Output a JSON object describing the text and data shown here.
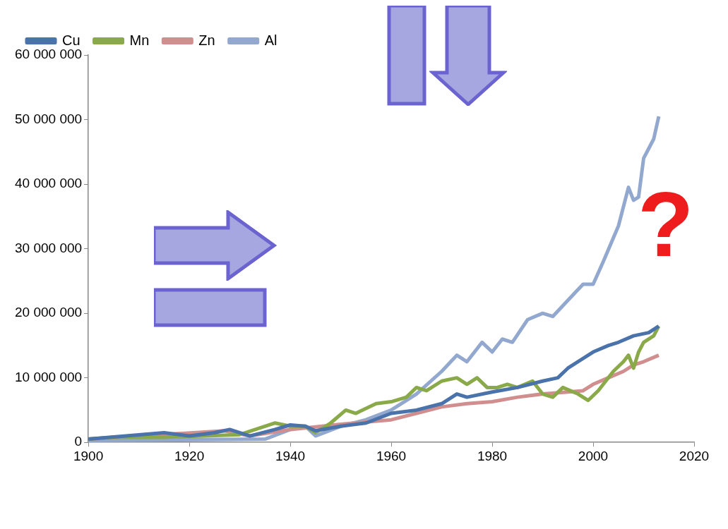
{
  "chart_data": {
    "type": "line",
    "legend": "top left",
    "marker": "none",
    "line_style": "solid",
    "grid": false,
    "xlim": [
      1900,
      2020
    ],
    "xticks": [
      1900,
      1920,
      1940,
      1960,
      1980,
      2000,
      2020
    ],
    "ylim": [
      0,
      60000000
    ],
    "yticks": [
      {
        "value": 0,
        "label": "0"
      },
      {
        "value": 10000000,
        "label": "10 000 000"
      },
      {
        "value": 20000000,
        "label": "20 000 000"
      },
      {
        "value": 30000000,
        "label": "30 000 000"
      },
      {
        "value": 40000000,
        "label": "40 000 000"
      },
      {
        "value": 50000000,
        "label": "50 000 000"
      },
      {
        "value": 60000000,
        "label": "60 000 000"
      }
    ],
    "annotations": [
      "?"
    ],
    "series": [
      {
        "name": "Cu",
        "color": "#4a72ab",
        "x": [
          1900,
          1915,
          1920,
          1925,
          1928,
          1932,
          1937,
          1940,
          1943,
          1945,
          1950,
          1955,
          1960,
          1965,
          1970,
          1973,
          1975,
          1980,
          1985,
          1990,
          1993,
          1995,
          2000,
          2003,
          2005,
          2008,
          2011,
          2013
        ],
        "values": [
          500000,
          1500000,
          1000000,
          1500000,
          2000000,
          1000000,
          2000000,
          2700000,
          2500000,
          1800000,
          2500000,
          3000000,
          4500000,
          5000000,
          6000000,
          7500000,
          7000000,
          7800000,
          8500000,
          9500000,
          10000000,
          11500000,
          14000000,
          15000000,
          15500000,
          16500000,
          17000000,
          18000000
        ]
      },
      {
        "name": "Mn",
        "color": "#8aaa4a",
        "x": [
          1900,
          1905,
          1915,
          1930,
          1937,
          1940,
          1943,
          1945,
          1948,
          1951,
          1953,
          1957,
          1960,
          1963,
          1965,
          1967,
          1970,
          1973,
          1975,
          1977,
          1979,
          1981,
          1983,
          1985,
          1988,
          1990,
          1992,
          1994,
          1997,
          1999,
          2001,
          2004,
          2006,
          2007,
          2008,
          2009,
          2010,
          2012,
          2013
        ],
        "values": [
          500000,
          800000,
          800000,
          1200000,
          3000000,
          2500000,
          2500000,
          1500000,
          3000000,
          5000000,
          4500000,
          6000000,
          6300000,
          7000000,
          8500000,
          8000000,
          9500000,
          10000000,
          9000000,
          10000000,
          8500000,
          8500000,
          9000000,
          8500000,
          9500000,
          7500000,
          7000000,
          8500000,
          7500000,
          6500000,
          8000000,
          11000000,
          12500000,
          13500000,
          11500000,
          14000000,
          15500000,
          16500000,
          18000000
        ]
      },
      {
        "name": "Zn",
        "color": "#d08e8e",
        "x": [
          1900,
          1927,
          1932,
          1940,
          1950,
          1960,
          1965,
          1970,
          1975,
          1980,
          1985,
          1990,
          1995,
          1998,
          2000,
          2003,
          2006,
          2008,
          2010,
          2013
        ],
        "values": [
          500000,
          1800000,
          1000000,
          2000000,
          2800000,
          3500000,
          4500000,
          5500000,
          6000000,
          6300000,
          7000000,
          7500000,
          7800000,
          8000000,
          9000000,
          10000000,
          11000000,
          12000000,
          12500000,
          13500000
        ]
      },
      {
        "name": "Al",
        "color": "#93a8cf",
        "x": [
          1900,
          1935,
          1940,
          1943,
          1945,
          1950,
          1955,
          1960,
          1965,
          1970,
          1973,
          1975,
          1978,
          1980,
          1982,
          1984,
          1987,
          1990,
          1992,
          1995,
          1998,
          2000,
          2002,
          2005,
          2007,
          2008,
          2009,
          2010,
          2011,
          2012,
          2013
        ],
        "values": [
          300000,
          500000,
          2000000,
          2500000,
          1000000,
          2500000,
          3500000,
          5000000,
          7500000,
          11000000,
          13500000,
          12500000,
          15500000,
          14000000,
          16000000,
          15500000,
          19000000,
          20000000,
          19500000,
          22000000,
          24500000,
          24500000,
          28000000,
          33500000,
          39500000,
          37500000,
          38000000,
          44000000,
          45500000,
          47000000,
          50500000
        ]
      }
    ]
  }
}
